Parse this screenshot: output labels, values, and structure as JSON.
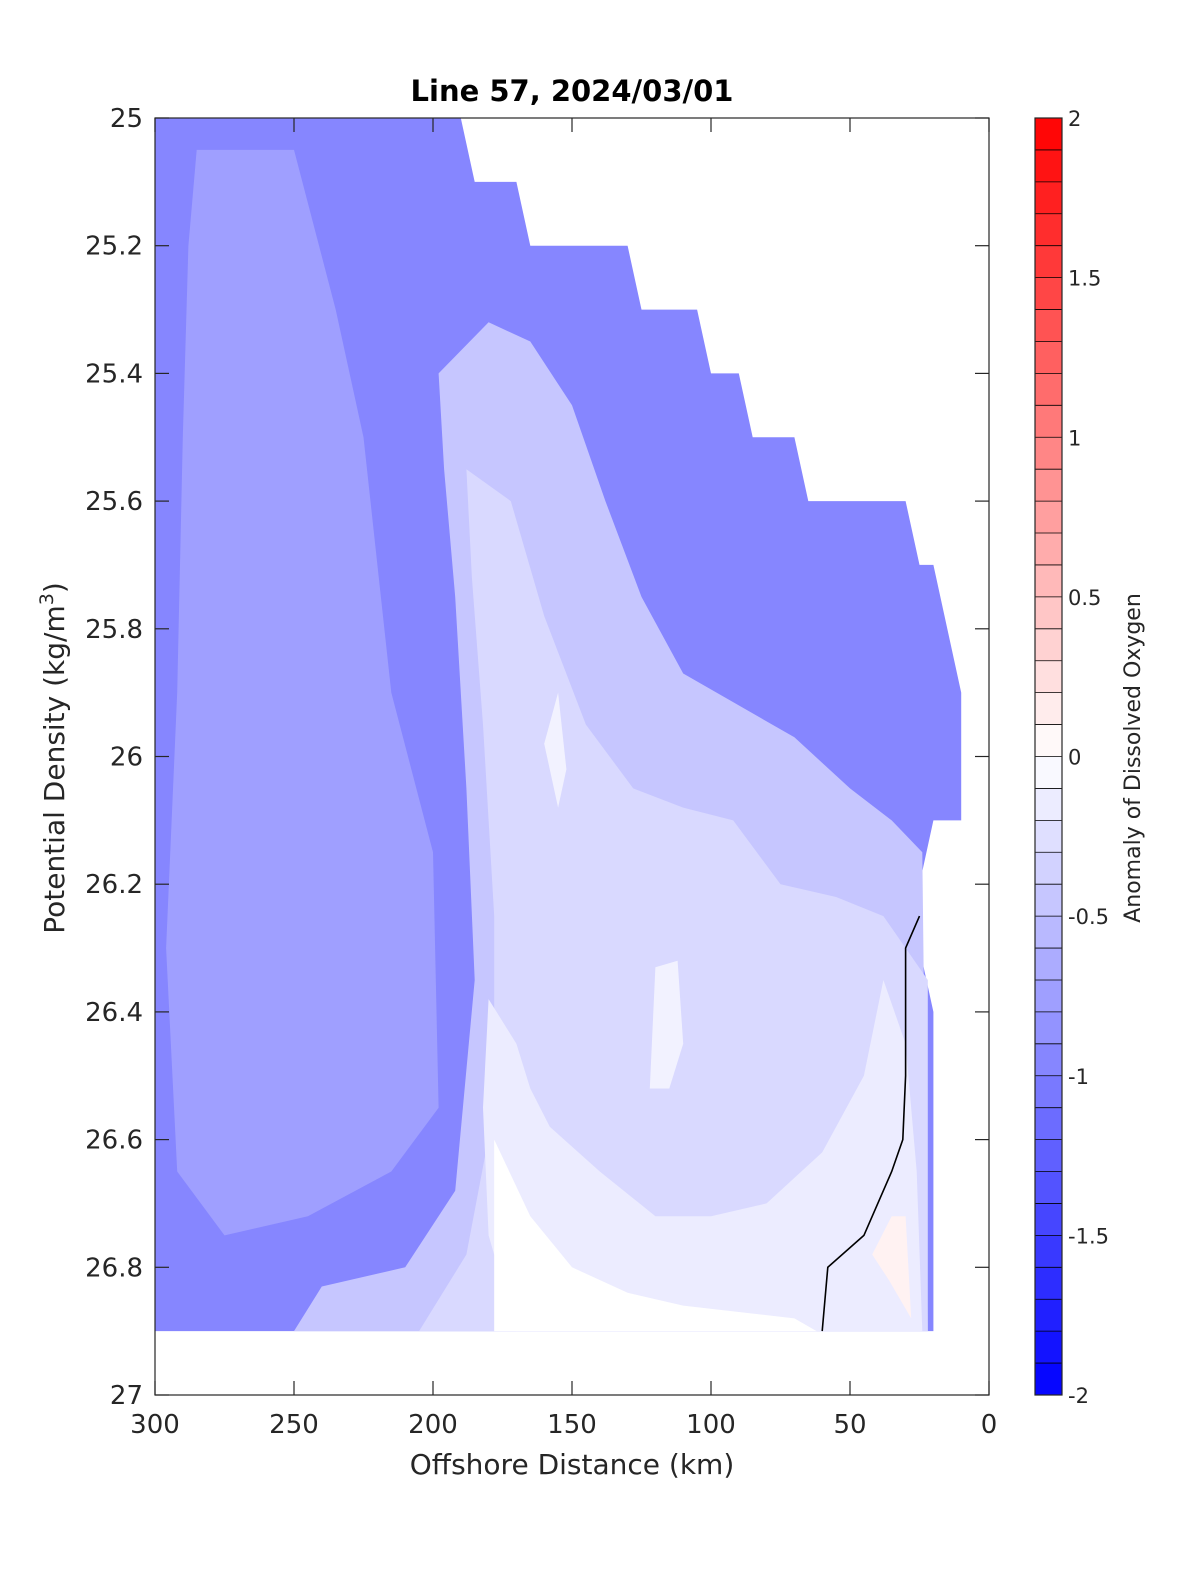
{
  "chart_data": {
    "type": "contour",
    "title": "Line 57, 2024/03/01",
    "xlabel": "Offshore Distance (km)",
    "ylabel": "Potential Density (kg/m",
    "ylabel_sup": "3",
    "ylabel_close": ")",
    "colorbar_label": "Anomaly of Dissolved Oxygen",
    "xlim": [
      0,
      300
    ],
    "x_reversed": true,
    "ylim": [
      25,
      27
    ],
    "y_reversed": true,
    "xticks": [
      300,
      250,
      200,
      150,
      100,
      50,
      0
    ],
    "xtick_labels": [
      "300",
      "250",
      "200",
      "150",
      "100",
      "50",
      "0"
    ],
    "yticks": [
      25,
      25.2,
      25.4,
      25.6,
      25.8,
      26,
      26.2,
      26.4,
      26.6,
      26.8,
      27
    ],
    "ytick_labels": [
      "25",
      "25.2",
      "25.4",
      "25.6",
      "25.8",
      "26",
      "26.2",
      "26.4",
      "26.6",
      "26.8",
      "27"
    ],
    "colorbar": {
      "range": [
        -2,
        2
      ],
      "levels": 40,
      "ticks": [
        2,
        1.5,
        1,
        0.5,
        0,
        -0.5,
        -1,
        -1.5,
        -2
      ],
      "tick_labels": [
        "2",
        "1.5",
        "1",
        "0.5",
        "0",
        "-0.5",
        "-1",
        "-1.5",
        "-2"
      ],
      "negative_color": "#0000ff",
      "positive_color": "#ff0000",
      "zero_color": "#ffffff"
    },
    "data_extent_boundary": [
      [
        300,
        25.0
      ],
      [
        190,
        25.0
      ],
      [
        185,
        25.1
      ],
      [
        170,
        25.1
      ],
      [
        165,
        25.2
      ],
      [
        130,
        25.2
      ],
      [
        125,
        25.3
      ],
      [
        105,
        25.3
      ],
      [
        100,
        25.4
      ],
      [
        90,
        25.4
      ],
      [
        85,
        25.5
      ],
      [
        70,
        25.5
      ],
      [
        65,
        25.6
      ],
      [
        30,
        25.6
      ],
      [
        25,
        25.7
      ],
      [
        20,
        25.7
      ],
      [
        10,
        25.9
      ],
      [
        10,
        26.1
      ],
      [
        20,
        26.1
      ],
      [
        25,
        26.2
      ],
      [
        25,
        26.3
      ],
      [
        20,
        26.4
      ],
      [
        20,
        26.9
      ],
      [
        300,
        26.9
      ]
    ],
    "anomaly_regions": [
      {
        "level": -0.95,
        "polygon": [
          [
            300,
            25.0
          ],
          [
            190,
            25.0
          ],
          [
            185,
            25.1
          ],
          [
            170,
            25.1
          ],
          [
            165,
            25.2
          ],
          [
            130,
            25.2
          ],
          [
            125,
            25.3
          ],
          [
            105,
            25.3
          ],
          [
            100,
            25.4
          ],
          [
            90,
            25.4
          ],
          [
            85,
            25.5
          ],
          [
            70,
            25.5
          ],
          [
            65,
            25.6
          ],
          [
            30,
            25.6
          ],
          [
            25,
            25.7
          ],
          [
            20,
            25.7
          ],
          [
            10,
            25.9
          ],
          [
            10,
            26.1
          ],
          [
            20,
            26.1
          ],
          [
            25,
            26.2
          ],
          [
            25,
            26.3
          ],
          [
            20,
            26.4
          ],
          [
            20,
            26.9
          ],
          [
            300,
            26.9
          ]
        ]
      },
      {
        "level": -0.75,
        "polygon": [
          [
            285,
            25.05
          ],
          [
            250,
            25.05
          ],
          [
            235,
            25.3
          ],
          [
            225,
            25.5
          ],
          [
            215,
            25.9
          ],
          [
            200,
            26.15
          ],
          [
            198,
            26.55
          ],
          [
            215,
            26.65
          ],
          [
            245,
            26.72
          ],
          [
            275,
            26.75
          ],
          [
            292,
            26.65
          ],
          [
            296,
            26.3
          ],
          [
            292,
            25.9
          ],
          [
            290,
            25.5
          ],
          [
            288,
            25.2
          ]
        ]
      },
      {
        "level": -0.45,
        "polygon": [
          [
            198,
            25.4
          ],
          [
            180,
            25.32
          ],
          [
            165,
            25.35
          ],
          [
            150,
            25.45
          ],
          [
            138,
            25.6
          ],
          [
            125,
            25.75
          ],
          [
            110,
            25.87
          ],
          [
            90,
            25.92
          ],
          [
            70,
            25.97
          ],
          [
            50,
            26.05
          ],
          [
            35,
            26.1
          ],
          [
            24,
            26.15
          ],
          [
            22,
            26.9
          ],
          [
            250,
            26.9
          ],
          [
            240,
            26.83
          ],
          [
            210,
            26.8
          ],
          [
            192,
            26.68
          ],
          [
            185,
            26.35
          ],
          [
            188,
            26.05
          ],
          [
            192,
            25.75
          ],
          [
            196,
            25.55
          ]
        ]
      },
      {
        "level": -0.3,
        "polygon": [
          [
            188,
            25.55
          ],
          [
            172,
            25.6
          ],
          [
            160,
            25.78
          ],
          [
            145,
            25.95
          ],
          [
            128,
            26.05
          ],
          [
            110,
            26.08
          ],
          [
            92,
            26.1
          ],
          [
            75,
            26.2
          ],
          [
            55,
            26.22
          ],
          [
            38,
            26.25
          ],
          [
            22,
            26.35
          ],
          [
            22,
            26.9
          ],
          [
            205,
            26.9
          ],
          [
            188,
            26.78
          ],
          [
            178,
            26.55
          ],
          [
            178,
            26.25
          ],
          [
            182,
            25.95
          ],
          [
            186,
            25.72
          ]
        ]
      },
      {
        "level": -0.15,
        "polygon": [
          [
            180,
            26.38
          ],
          [
            170,
            26.45
          ],
          [
            165,
            26.52
          ],
          [
            158,
            26.58
          ],
          [
            140,
            26.65
          ],
          [
            120,
            26.72
          ],
          [
            100,
            26.72
          ],
          [
            80,
            26.7
          ],
          [
            60,
            26.62
          ],
          [
            45,
            26.5
          ],
          [
            38,
            26.35
          ],
          [
            30,
            26.45
          ],
          [
            26,
            26.65
          ],
          [
            24,
            26.9
          ],
          [
            170,
            26.9
          ],
          [
            180,
            26.75
          ],
          [
            182,
            26.55
          ]
        ]
      },
      {
        "level": 0.0,
        "polygon": [
          [
            178,
            26.6
          ],
          [
            165,
            26.72
          ],
          [
            150,
            26.8
          ],
          [
            130,
            26.84
          ],
          [
            110,
            26.86
          ],
          [
            90,
            26.87
          ],
          [
            70,
            26.88
          ],
          [
            62,
            26.9
          ],
          [
            178,
            26.9
          ]
        ]
      },
      {
        "level": -0.1,
        "polygon": [
          [
            160,
            25.98
          ],
          [
            155,
            25.9
          ],
          [
            152,
            26.02
          ],
          [
            155,
            26.08
          ]
        ]
      },
      {
        "level": -0.1,
        "polygon": [
          [
            120,
            26.33
          ],
          [
            112,
            26.32
          ],
          [
            110,
            26.45
          ],
          [
            115,
            26.52
          ],
          [
            122,
            26.52
          ]
        ]
      },
      {
        "level": 0.1,
        "polygon": [
          [
            35,
            26.72
          ],
          [
            30,
            26.72
          ],
          [
            28,
            26.88
          ],
          [
            36,
            26.82
          ],
          [
            42,
            26.78
          ]
        ]
      }
    ],
    "zero_contour_line": [
      [
        25,
        26.25
      ],
      [
        30,
        26.3
      ],
      [
        30,
        26.5
      ],
      [
        31,
        26.6
      ],
      [
        35,
        26.65
      ],
      [
        45,
        26.75
      ],
      [
        58,
        26.8
      ],
      [
        60,
        26.9
      ]
    ]
  }
}
